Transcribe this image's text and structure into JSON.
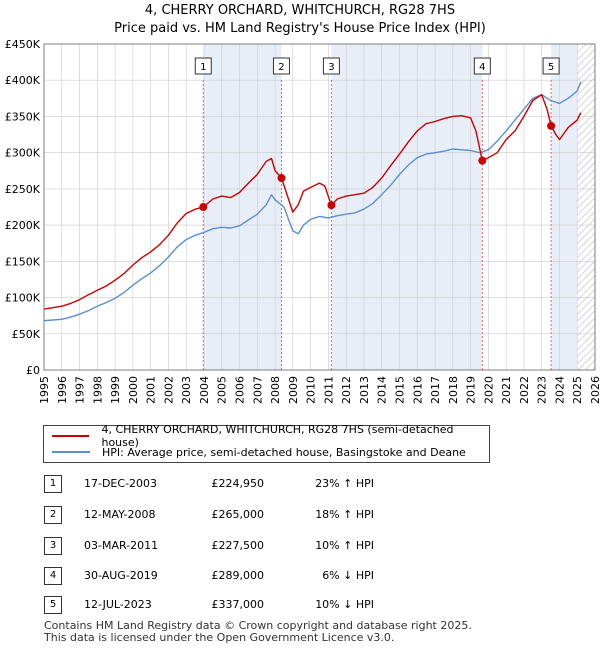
{
  "title_line1": "4, CHERRY ORCHARD, WHITCHURCH, RG28 7HS",
  "title_line2": "Price paid vs. HM Land Registry's House Price Index (HPI)",
  "colors": {
    "property": "#cc0000",
    "hpi": "#5b8fd0",
    "shade": "#e8eef8",
    "grid": "#cccccc",
    "vline": "#dd6666"
  },
  "chart_data": {
    "type": "line",
    "title": "4, CHERRY ORCHARD, WHITCHURCH, RG28 7HS — Price paid vs. HM Land Registry's House Price Index (HPI)",
    "xlim": [
      1995,
      2026
    ],
    "ylim": [
      0,
      450000
    ],
    "x_ticks": [
      "1995",
      "1996",
      "1997",
      "1998",
      "1999",
      "2000",
      "2001",
      "2002",
      "2003",
      "2004",
      "2005",
      "2006",
      "2007",
      "2008",
      "2009",
      "2010",
      "2011",
      "2012",
      "2013",
      "2014",
      "2015",
      "2016",
      "2017",
      "2018",
      "2019",
      "2020",
      "2021",
      "2022",
      "2023",
      "2024",
      "2025",
      "2026"
    ],
    "y_ticks": [
      {
        "value": 0,
        "label": "£0"
      },
      {
        "value": 50000,
        "label": "£50K"
      },
      {
        "value": 100000,
        "label": "£100K"
      },
      {
        "value": 150000,
        "label": "£150K"
      },
      {
        "value": 200000,
        "label": "£200K"
      },
      {
        "value": 250000,
        "label": "£250K"
      },
      {
        "value": 300000,
        "label": "£300K"
      },
      {
        "value": 350000,
        "label": "£350K"
      },
      {
        "value": 400000,
        "label": "£400K"
      },
      {
        "value": 450000,
        "label": "£450K"
      }
    ],
    "shaded_periods": [
      [
        2003.96,
        2008.36
      ],
      [
        2011.17,
        2019.66
      ],
      [
        2023.53,
        2025.0
      ]
    ],
    "hatched_from": 2025.0,
    "series": [
      {
        "name": "4, CHERRY ORCHARD, WHITCHURCH, RG28 7HS (semi-detached house)",
        "color": "#cc0000",
        "x": [
          1995.0,
          1995.5,
          1996.0,
          1996.5,
          1997.0,
          1997.5,
          1998.0,
          1998.5,
          1999.0,
          1999.5,
          2000.0,
          2000.5,
          2001.0,
          2001.5,
          2002.0,
          2002.5,
          2003.0,
          2003.5,
          2003.96,
          2004.5,
          2005.0,
          2005.5,
          2006.0,
          2006.5,
          2007.0,
          2007.5,
          2007.8,
          2008.0,
          2008.36,
          2008.7,
          2009.0,
          2009.3,
          2009.6,
          2010.0,
          2010.5,
          2010.8,
          2011.17,
          2011.5,
          2012.0,
          2012.5,
          2013.0,
          2013.5,
          2014.0,
          2014.5,
          2015.0,
          2015.5,
          2016.0,
          2016.5,
          2017.0,
          2017.5,
          2018.0,
          2018.5,
          2019.0,
          2019.3,
          2019.66,
          2020.0,
          2020.5,
          2021.0,
          2021.5,
          2022.0,
          2022.5,
          2023.0,
          2023.3,
          2023.53,
          2023.8,
          2024.0,
          2024.5,
          2025.0,
          2025.2
        ],
        "y": [
          84000,
          86000,
          88000,
          92000,
          97000,
          104000,
          110000,
          116000,
          124000,
          133000,
          145000,
          155000,
          163000,
          173000,
          186000,
          203000,
          216000,
          222000,
          224950,
          236000,
          240000,
          238000,
          245000,
          258000,
          270000,
          288000,
          292000,
          275000,
          265000,
          240000,
          218000,
          228000,
          247000,
          252000,
          258000,
          254000,
          227500,
          236000,
          240000,
          242000,
          244000,
          252000,
          265000,
          282000,
          298000,
          315000,
          330000,
          340000,
          343000,
          347000,
          350000,
          351000,
          348000,
          330000,
          289000,
          293000,
          300000,
          318000,
          330000,
          350000,
          372000,
          380000,
          360000,
          337000,
          325000,
          318000,
          335000,
          345000,
          355000
        ]
      },
      {
        "name": "HPI: Average price, semi-detached house, Basingstoke and Deane",
        "color": "#5b8fd0",
        "x": [
          1995.0,
          1995.5,
          1996.0,
          1996.5,
          1997.0,
          1997.5,
          1998.0,
          1998.5,
          1999.0,
          1999.5,
          2000.0,
          2000.5,
          2001.0,
          2001.5,
          2002.0,
          2002.5,
          2003.0,
          2003.5,
          2004.0,
          2004.5,
          2005.0,
          2005.5,
          2006.0,
          2006.5,
          2007.0,
          2007.5,
          2007.8,
          2008.0,
          2008.5,
          2008.8,
          2009.0,
          2009.3,
          2009.6,
          2010.0,
          2010.5,
          2011.0,
          2011.5,
          2012.0,
          2012.5,
          2013.0,
          2013.5,
          2014.0,
          2014.5,
          2015.0,
          2015.5,
          2016.0,
          2016.5,
          2017.0,
          2017.5,
          2018.0,
          2018.5,
          2019.0,
          2019.5,
          2020.0,
          2020.5,
          2021.0,
          2021.5,
          2022.0,
          2022.5,
          2023.0,
          2023.5,
          2024.0,
          2024.5,
          2025.0,
          2025.2
        ],
        "y": [
          68000,
          69000,
          70000,
          73000,
          77000,
          82000,
          88000,
          93000,
          99000,
          107000,
          117000,
          126000,
          134000,
          144000,
          156000,
          170000,
          180000,
          186000,
          190000,
          195000,
          197000,
          196000,
          199000,
          207000,
          215000,
          228000,
          242000,
          235000,
          225000,
          205000,
          192000,
          188000,
          200000,
          208000,
          212000,
          210000,
          213000,
          215000,
          217000,
          222000,
          230000,
          242000,
          255000,
          270000,
          283000,
          293000,
          298000,
          300000,
          302000,
          305000,
          304000,
          303000,
          300000,
          304000,
          316000,
          330000,
          345000,
          360000,
          375000,
          380000,
          372000,
          368000,
          375000,
          385000,
          398000
        ]
      }
    ],
    "markers": [
      {
        "num": "1",
        "x": 2003.96,
        "y": 224950
      },
      {
        "num": "2",
        "x": 2008.36,
        "y": 265000
      },
      {
        "num": "3",
        "x": 2011.17,
        "y": 227500
      },
      {
        "num": "4",
        "x": 2019.66,
        "y": 289000
      },
      {
        "num": "5",
        "x": 2023.53,
        "y": 337000
      }
    ]
  },
  "legend": {
    "property_label": "4, CHERRY ORCHARD, WHITCHURCH, RG28 7HS (semi-detached house)",
    "hpi_label": "HPI: Average price, semi-detached house, Basingstoke and Deane"
  },
  "transactions": [
    {
      "num": "1",
      "date": "17-DEC-2003",
      "price": "£224,950",
      "hpi": "23% ↑ HPI"
    },
    {
      "num": "2",
      "date": "12-MAY-2008",
      "price": "£265,000",
      "hpi": "18% ↑ HPI"
    },
    {
      "num": "3",
      "date": "03-MAR-2011",
      "price": "£227,500",
      "hpi": "10% ↑ HPI"
    },
    {
      "num": "4",
      "date": "30-AUG-2019",
      "price": "£289,000",
      "hpi": "6% ↓ HPI"
    },
    {
      "num": "5",
      "date": "12-JUL-2023",
      "price": "£337,000",
      "hpi": "10% ↓ HPI"
    }
  ],
  "footer_line1": "Contains HM Land Registry data © Crown copyright and database right 2025.",
  "footer_line2": "This data is licensed under the Open Government Licence v3.0."
}
